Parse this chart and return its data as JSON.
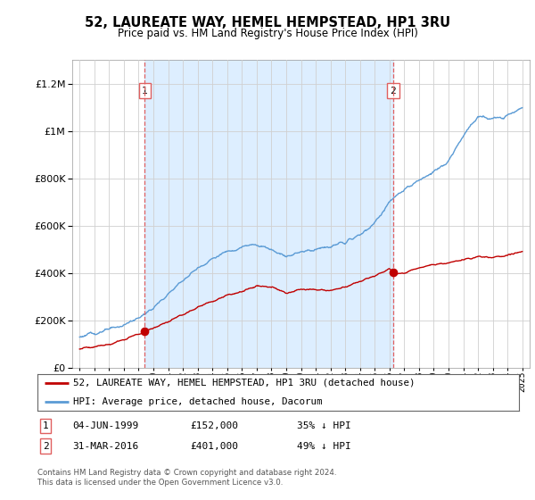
{
  "title": "52, LAUREATE WAY, HEMEL HEMPSTEAD, HP1 3RU",
  "subtitle": "Price paid vs. HM Land Registry's House Price Index (HPI)",
  "footnote": "Contains HM Land Registry data © Crown copyright and database right 2024.\nThis data is licensed under the Open Government Licence v3.0.",
  "legend_line1": "52, LAUREATE WAY, HEMEL HEMPSTEAD, HP1 3RU (detached house)",
  "legend_line2": "HPI: Average price, detached house, Dacorum",
  "table_rows": [
    {
      "num": "1",
      "date": "04-JUN-1999",
      "price": "£152,000",
      "hpi": "35% ↓ HPI"
    },
    {
      "num": "2",
      "date": "31-MAR-2016",
      "price": "£401,000",
      "hpi": "49% ↓ HPI"
    }
  ],
  "sale1_year": 1999.42,
  "sale1_price": 152000,
  "sale2_year": 2016.25,
  "sale2_price": 401000,
  "hpi_color": "#5b9bd5",
  "sold_color": "#c00000",
  "vline_color": "#e06060",
  "shade_color": "#ddeeff",
  "ylim": [
    0,
    1300000
  ],
  "xlim_start": 1994.5,
  "xlim_end": 2025.5,
  "background_color": "#ffffff",
  "grid_color": "#d0d0d0"
}
